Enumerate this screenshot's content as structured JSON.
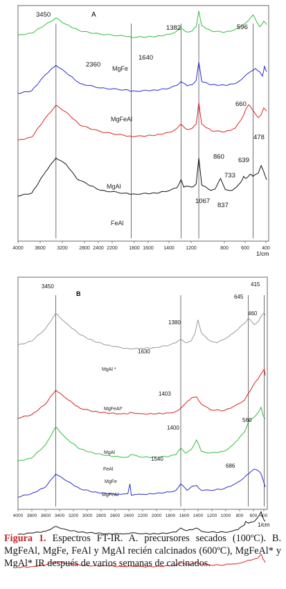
{
  "caption": {
    "label": "Figura 1.",
    "text": "Espectros FT-IR. A. precursores secados (100ºC). B. MgFeAl, MgFe, FeAl y MgAl recién calcinados (600ºC), MgFeAl* y MgAl* IR después de varios semanas de calcinados."
  },
  "chart_data": [
    {
      "type": "line",
      "panel_label": "A",
      "xunit": "1/cm",
      "x_ticks": [
        "4000",
        "3600",
        "3200",
        "2800",
        "2400",
        "2200",
        "1800",
        "1600",
        "1400",
        "1200",
        "800",
        "600",
        "400"
      ],
      "xlim": [
        4000,
        400
      ],
      "peak_labels": [
        "3450",
        "2360",
        "1640",
        "1382",
        "596",
        "660",
        "860",
        "639",
        "478",
        "733",
        "1067",
        "837"
      ],
      "reference_lines_cm": [
        3450,
        2360,
        1640,
        1382,
        596
      ],
      "series": [
        {
          "name": "MgFe",
          "color": "#2fbf3a",
          "x": [
            4000,
            3800,
            3600,
            3450,
            3300,
            3100,
            2800,
            2400,
            2360,
            2200,
            2000,
            1800,
            1700,
            1640,
            1550,
            1480,
            1420,
            1382,
            1340,
            1200,
            1000,
            860,
            760,
            660,
            596,
            540,
            500,
            440,
            400
          ],
          "y": [
            0.5,
            0.54,
            0.7,
            0.82,
            0.7,
            0.58,
            0.52,
            0.48,
            0.46,
            0.47,
            0.48,
            0.52,
            0.58,
            0.64,
            0.56,
            0.58,
            0.66,
            0.95,
            0.68,
            0.58,
            0.56,
            0.6,
            0.68,
            0.78,
            0.88,
            0.74,
            0.66,
            0.76,
            0.7
          ]
        },
        {
          "name": "MgFeAl",
          "color": "#2a2ad6",
          "x": [
            4000,
            3800,
            3600,
            3450,
            3300,
            3100,
            2800,
            2400,
            2360,
            2200,
            2000,
            1800,
            1700,
            1640,
            1550,
            1480,
            1420,
            1382,
            1340,
            1200,
            1000,
            860,
            760,
            660,
            560,
            500,
            460,
            430,
            400
          ],
          "y": [
            0.4,
            0.45,
            0.75,
            0.92,
            0.78,
            0.58,
            0.5,
            0.46,
            0.44,
            0.45,
            0.46,
            0.5,
            0.55,
            0.62,
            0.54,
            0.56,
            0.64,
            0.98,
            0.62,
            0.56,
            0.55,
            0.58,
            0.66,
            0.78,
            0.86,
            0.8,
            0.72,
            0.9,
            0.8
          ]
        },
        {
          "name": "MgAl",
          "color": "#d92222",
          "x": [
            4000,
            3800,
            3600,
            3450,
            3300,
            3100,
            2800,
            2400,
            2360,
            2200,
            2000,
            1800,
            1700,
            1640,
            1550,
            1480,
            1420,
            1382,
            1340,
            1200,
            1000,
            860,
            760,
            700,
            660,
            600,
            520,
            478,
            440,
            400
          ],
          "y": [
            0.3,
            0.36,
            0.72,
            0.95,
            0.82,
            0.58,
            0.46,
            0.38,
            0.37,
            0.38,
            0.4,
            0.45,
            0.52,
            0.6,
            0.5,
            0.52,
            0.6,
            1.0,
            0.6,
            0.48,
            0.46,
            0.52,
            0.7,
            0.88,
            0.96,
            0.86,
            0.72,
            0.78,
            0.9,
            0.84
          ]
        },
        {
          "name": "FeAl",
          "color": "#111111",
          "x": [
            4000,
            3800,
            3600,
            3450,
            3300,
            3150,
            3000,
            2800,
            2400,
            2360,
            2200,
            2000,
            1800,
            1700,
            1640,
            1600,
            1550,
            1480,
            1420,
            1382,
            1340,
            1200,
            1150,
            1067,
            1000,
            900,
            837,
            760,
            733,
            700,
            639,
            600,
            520,
            478,
            440,
            400
          ],
          "y": [
            0.3,
            0.35,
            0.75,
            1.0,
            0.88,
            0.62,
            0.52,
            0.4,
            0.34,
            0.33,
            0.34,
            0.35,
            0.4,
            0.45,
            0.6,
            0.46,
            0.48,
            0.46,
            0.52,
            1.0,
            0.5,
            0.4,
            0.42,
            0.62,
            0.42,
            0.4,
            0.46,
            0.58,
            0.66,
            0.62,
            0.7,
            0.66,
            0.72,
            0.86,
            0.74,
            0.6
          ]
        }
      ]
    },
    {
      "type": "line",
      "panel_label": "B",
      "xunit": "1/cm",
      "x_ticks": [
        "4000",
        "3800",
        "3600",
        "3400",
        "3200",
        "3000",
        "2800",
        "2600",
        "2400",
        "2200",
        "2000",
        "1800",
        "1600",
        "1400",
        "1200",
        "1000",
        "800",
        "600",
        "400"
      ],
      "xlim": [
        4000,
        400
      ],
      "peak_labels": [
        "3450",
        "1380",
        "415",
        "645",
        "460",
        "1630",
        "1403",
        "1400",
        "560",
        "1540",
        "686"
      ],
      "reference_lines_cm": [
        3450,
        1630,
        645,
        415
      ],
      "series": [
        {
          "name": "MgAl *",
          "color": "#999999",
          "x": [
            4000,
            3800,
            3600,
            3450,
            3300,
            3100,
            2900,
            2700,
            2500,
            2400,
            2360,
            2200,
            2000,
            1800,
            1700,
            1630,
            1560,
            1480,
            1420,
            1380,
            1330,
            1200,
            1100,
            1000,
            900,
            800,
            700,
            645,
            560,
            500,
            460,
            415,
            400
          ],
          "y": [
            0.55,
            0.6,
            0.75,
            0.94,
            0.82,
            0.68,
            0.6,
            0.55,
            0.52,
            0.51,
            0.5,
            0.51,
            0.52,
            0.55,
            0.58,
            0.62,
            0.58,
            0.6,
            0.7,
            0.86,
            0.7,
            0.6,
            0.58,
            0.62,
            0.68,
            0.74,
            0.82,
            0.88,
            0.8,
            0.84,
            0.9,
            0.95,
            0.92
          ]
        },
        {
          "name": "MgFeAl*",
          "color": "#d92222",
          "x": [
            4000,
            3800,
            3600,
            3450,
            3300,
            3100,
            2900,
            2700,
            2500,
            2400,
            2360,
            2200,
            2000,
            1800,
            1700,
            1630,
            1560,
            1480,
            1403,
            1330,
            1200,
            1000,
            900,
            800,
            700,
            645,
            560,
            500,
            460,
            415,
            400
          ],
          "y": [
            0.38,
            0.42,
            0.55,
            0.72,
            0.62,
            0.5,
            0.46,
            0.44,
            0.43,
            0.43,
            0.45,
            0.43,
            0.43,
            0.44,
            0.46,
            0.5,
            0.56,
            0.62,
            0.64,
            0.55,
            0.48,
            0.47,
            0.5,
            0.55,
            0.6,
            0.68,
            0.8,
            0.86,
            0.92,
            0.98,
            0.9
          ]
        },
        {
          "name": "MgAl",
          "color": "#2fbf3a",
          "x": [
            4000,
            3800,
            3600,
            3450,
            3300,
            3100,
            2900,
            2700,
            2500,
            2400,
            2360,
            2200,
            2000,
            1800,
            1700,
            1630,
            1560,
            1480,
            1400,
            1330,
            1200,
            1000,
            900,
            800,
            700,
            645,
            560,
            500,
            460,
            430,
            400
          ],
          "y": [
            0.3,
            0.34,
            0.5,
            0.72,
            0.58,
            0.45,
            0.4,
            0.37,
            0.35,
            0.35,
            0.38,
            0.35,
            0.35,
            0.36,
            0.38,
            0.46,
            0.4,
            0.44,
            0.56,
            0.42,
            0.4,
            0.42,
            0.48,
            0.56,
            0.66,
            0.78,
            0.84,
            0.9,
            0.96,
            0.86,
            0.82
          ]
        },
        {
          "name": "FeAl",
          "color": "#2a2ad6",
          "x": [
            4000,
            3800,
            3600,
            3450,
            3300,
            3100,
            2900,
            2700,
            2500,
            2400,
            2370,
            2350,
            2300,
            2200,
            2000,
            1800,
            1700,
            1630,
            1540,
            1480,
            1400,
            1330,
            1200,
            1000,
            900,
            800,
            700,
            620,
            560,
            500,
            460,
            430,
            400
          ],
          "y": [
            0.22,
            0.26,
            0.34,
            0.5,
            0.42,
            0.32,
            0.28,
            0.26,
            0.25,
            0.26,
            0.38,
            0.24,
            0.25,
            0.25,
            0.26,
            0.28,
            0.3,
            0.38,
            0.3,
            0.34,
            0.36,
            0.3,
            0.3,
            0.32,
            0.35,
            0.4,
            0.46,
            0.52,
            0.56,
            0.54,
            0.5,
            0.42,
            0.34
          ]
        },
        {
          "name": "MgFe",
          "color": "#111111",
          "x": [
            4000,
            3800,
            3600,
            3450,
            3300,
            3100,
            2900,
            2700,
            2500,
            2400,
            2360,
            2200,
            2000,
            1800,
            1700,
            1630,
            1560,
            1480,
            1400,
            1330,
            1200,
            1000,
            900,
            800,
            700,
            686,
            640,
            560,
            500,
            460,
            430,
            400
          ],
          "y": [
            0.14,
            0.16,
            0.18,
            0.24,
            0.2,
            0.17,
            0.16,
            0.15,
            0.15,
            0.15,
            0.16,
            0.15,
            0.15,
            0.16,
            0.17,
            0.22,
            0.19,
            0.2,
            0.22,
            0.18,
            0.17,
            0.17,
            0.18,
            0.2,
            0.26,
            0.3,
            0.28,
            0.3,
            0.36,
            0.42,
            0.34,
            0.3
          ]
        },
        {
          "name": "MgFeAl",
          "color": "#d92222",
          "x": [
            4000,
            3800,
            3600,
            3450,
            3300,
            3100,
            2900,
            2700,
            2500,
            2400,
            2360,
            2200,
            2000,
            1800,
            1700,
            1630,
            1560,
            1480,
            1400,
            1330,
            1200,
            1000,
            900,
            800,
            700,
            600,
            500,
            460,
            430,
            400
          ],
          "y": [
            0.06,
            0.07,
            0.09,
            0.13,
            0.11,
            0.09,
            0.08,
            0.08,
            0.07,
            0.07,
            0.08,
            0.07,
            0.07,
            0.08,
            0.09,
            0.12,
            0.1,
            0.1,
            0.12,
            0.1,
            0.09,
            0.09,
            0.1,
            0.11,
            0.13,
            0.15,
            0.18,
            0.22,
            0.16,
            0.12
          ]
        }
      ]
    }
  ]
}
